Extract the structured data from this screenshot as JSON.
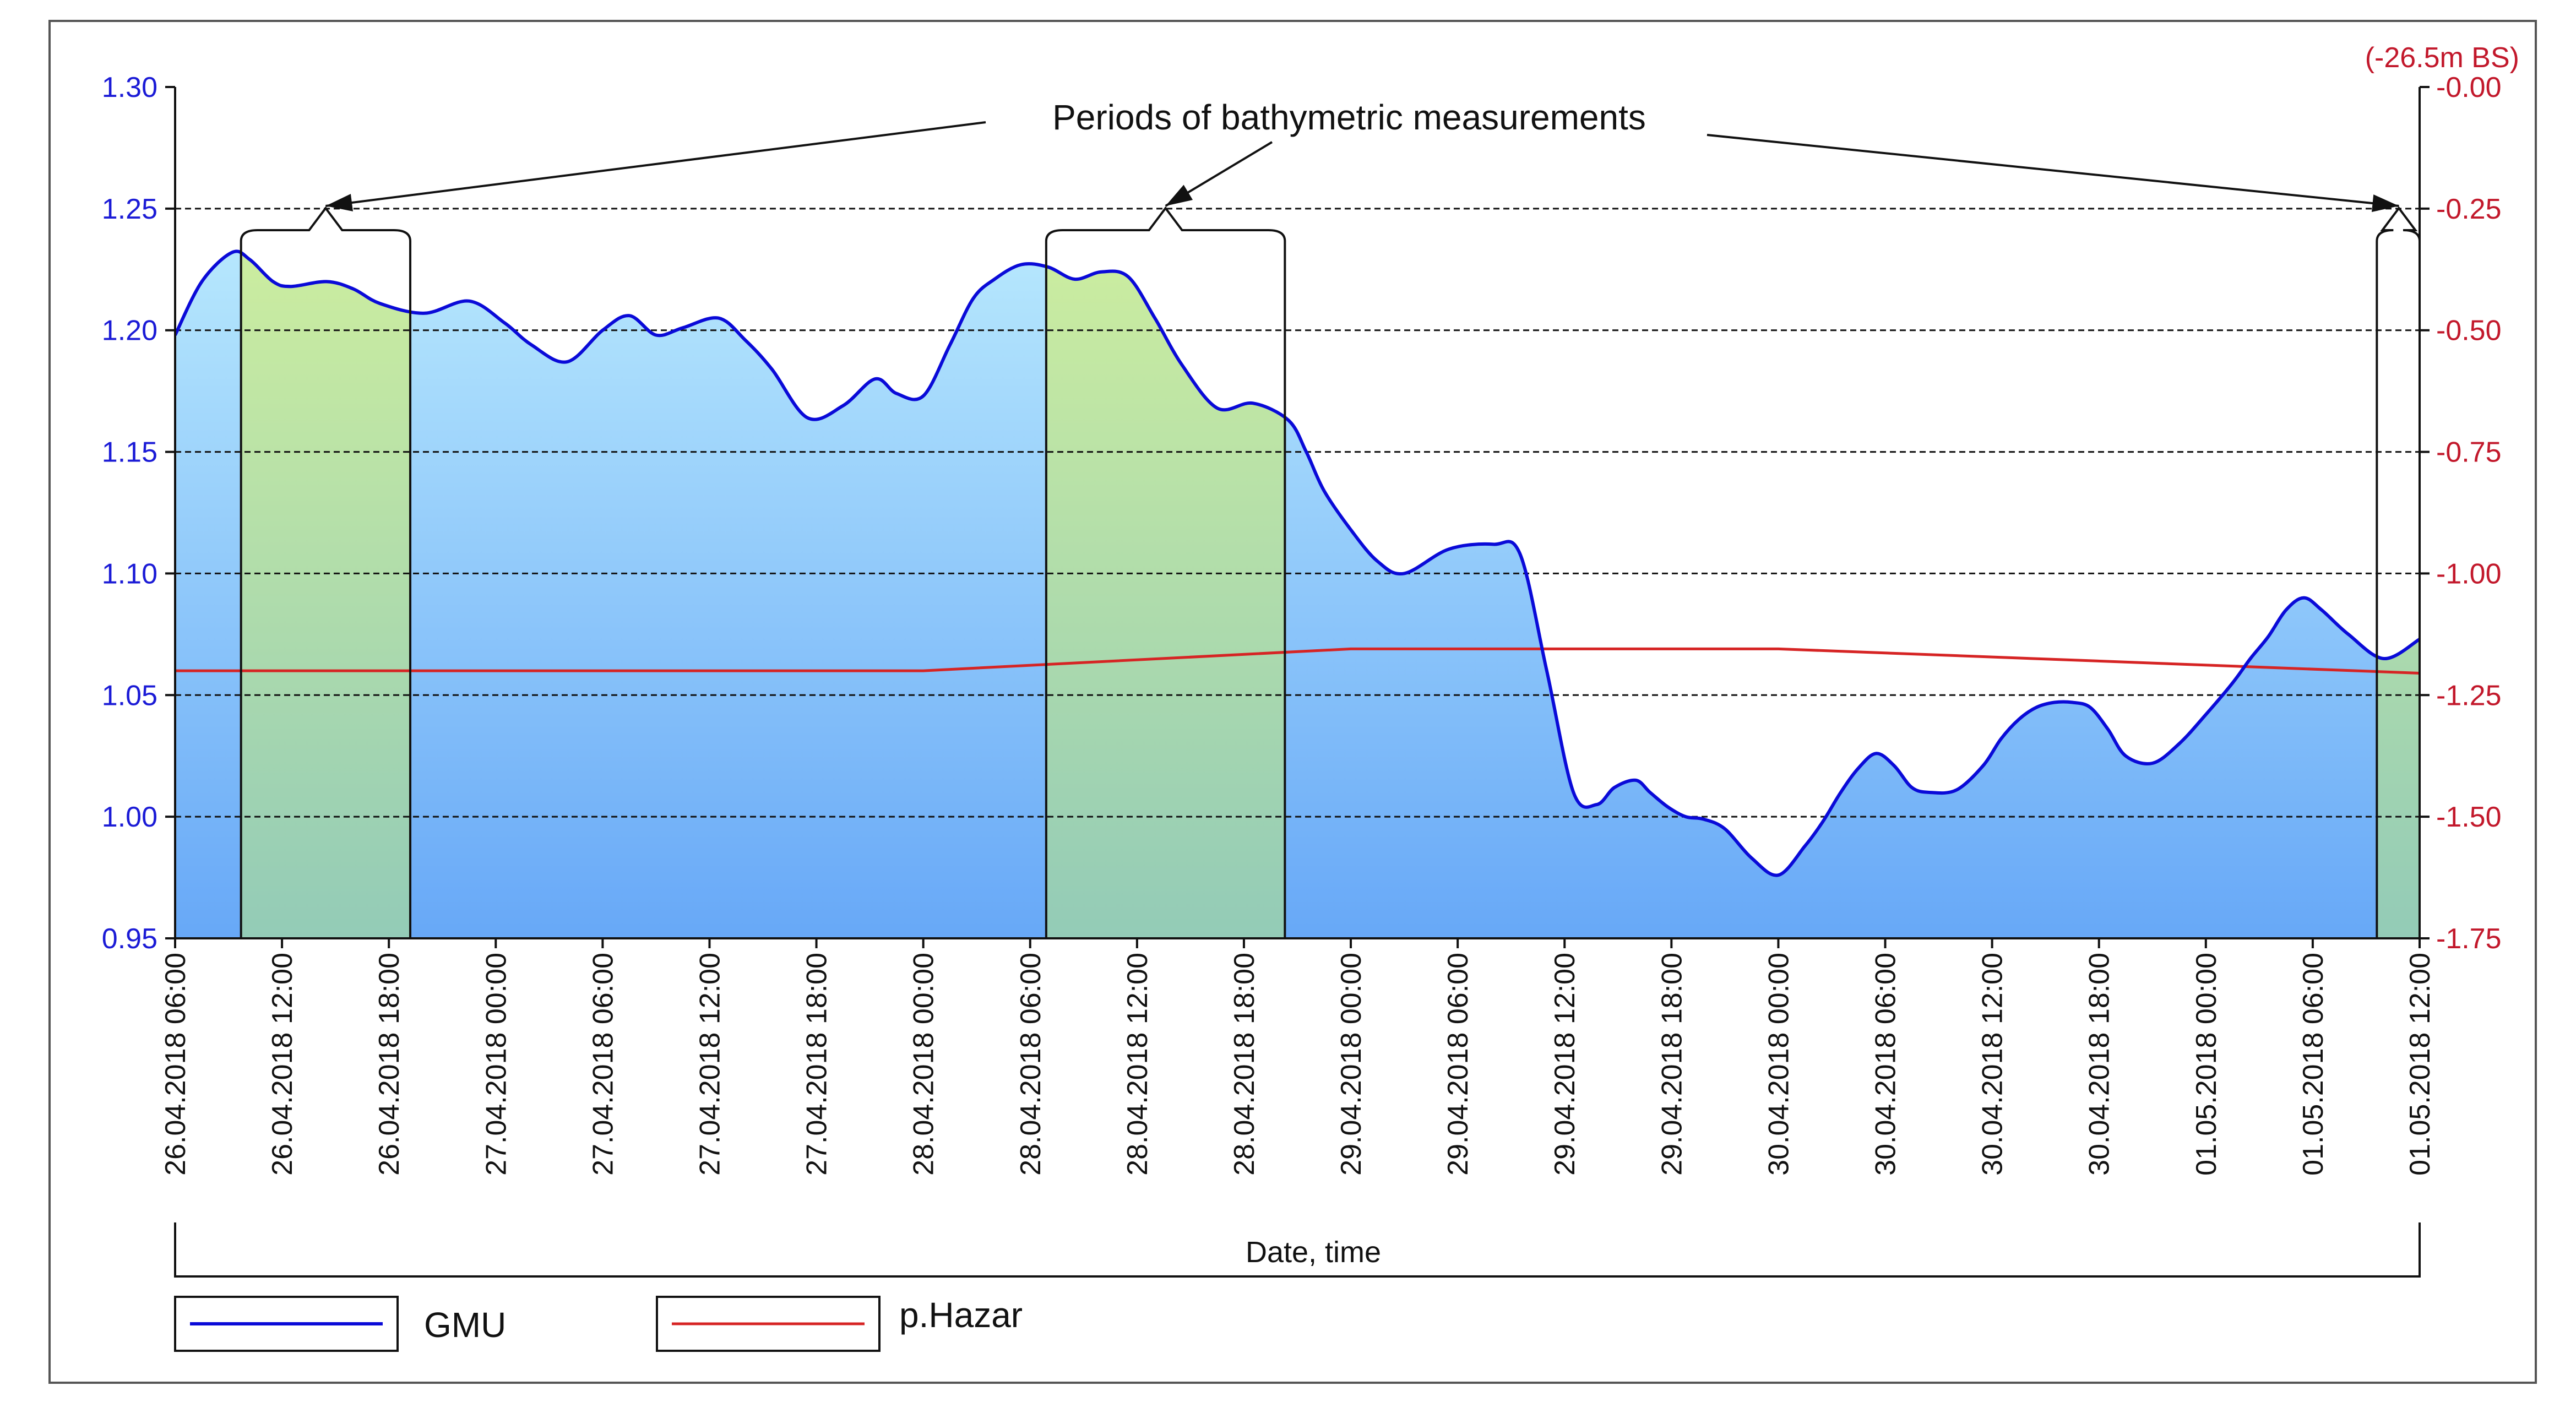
{
  "chart_data": {
    "type": "area",
    "xlabel": "Date, time",
    "annotation": "Periods of bathymetric measurements",
    "left_axis": {
      "range": [
        0.95,
        1.3
      ],
      "ticks": [
        "1.30",
        "1.25",
        "1.20",
        "1.15",
        "1.10",
        "1.05",
        "1.00",
        "0.95"
      ],
      "color": "#1b1bd6"
    },
    "right_axis": {
      "unit_label": "(-26.5m BS)",
      "range": [
        -1.75,
        0.0
      ],
      "ticks": [
        "-0.00",
        "-0.25",
        "-0.50",
        "-0.75",
        "-1.00",
        "-1.25",
        "-1.50",
        "-1.75"
      ],
      "color": "#c2182b"
    },
    "x_axis": {
      "range_hours": [
        0,
        126
      ],
      "ticks": [
        "26.04.2018 06:00",
        "26.04.2018 12:00",
        "26.04.2018 18:00",
        "27.04.2018 00:00",
        "27.04.2018 06:00",
        "27.04.2018 12:00",
        "27.04.2018 18:00",
        "28.04.2018 00:00",
        "28.04.2018 06:00",
        "28.04.2018 12:00",
        "28.04.2018 18:00",
        "29.04.2018 00:00",
        "29.04.2018 06:00",
        "29.04.2018 12:00",
        "29.04.2018 18:00",
        "30.04.2018 00:00",
        "30.04.2018 06:00",
        "30.04.2018 12:00",
        "30.04.2018 18:00",
        "01.05.2018 00:00",
        "01.05.2018 06:00",
        "01.05.2018 12:00"
      ]
    },
    "measurement_periods_hours": [
      [
        3.7,
        13.2
      ],
      [
        48.9,
        62.3
      ],
      [
        123.6,
        126
      ]
    ],
    "series": [
      {
        "name": "GMU",
        "axis": "left",
        "color": "#0a0ad8",
        "x_hours": [
          0,
          1.5,
          3.2,
          4.2,
          5.5,
          6.5,
          8.5,
          10,
          11.5,
          14,
          16.5,
          18.5,
          20,
          22,
          24,
          25.5,
          27,
          28.5,
          30.5,
          32,
          33.5,
          35.5,
          37.5,
          39.3,
          40.5,
          42,
          43.5,
          44.8,
          46,
          47.5,
          49,
          50.5,
          52,
          53.5,
          55,
          56.5,
          58.5,
          60.5,
          62.5,
          63.5,
          64.5,
          66,
          67.5,
          69,
          71.5,
          74,
          75.5,
          77,
          78.5,
          79.8,
          80.8,
          82,
          82.8,
          83.8,
          84.8,
          85.8,
          87,
          88.5,
          90,
          91.5,
          92.5,
          93.5,
          94.5,
          95.5,
          96.5,
          97.5,
          98.5,
          100,
          101.5,
          102.5,
          103.5,
          104.5,
          105.5,
          106.5,
          107.5,
          108.5,
          109.5,
          111,
          112.5,
          114,
          115.5,
          116.5,
          117.5,
          118.5,
          119.5,
          120.5,
          122,
          124,
          126
        ],
        "values": [
          1.198,
          1.22,
          1.232,
          1.229,
          1.22,
          1.218,
          1.22,
          1.217,
          1.211,
          1.207,
          1.212,
          1.203,
          1.194,
          1.187,
          1.2,
          1.206,
          1.198,
          1.201,
          1.205,
          1.196,
          1.184,
          1.164,
          1.169,
          1.18,
          1.174,
          1.173,
          1.194,
          1.213,
          1.221,
          1.227,
          1.226,
          1.221,
          1.224,
          1.222,
          1.205,
          1.186,
          1.168,
          1.17,
          1.163,
          1.15,
          1.134,
          1.118,
          1.105,
          1.1,
          1.11,
          1.112,
          1.108,
          1.06,
          1.01,
          1.005,
          1.012,
          1.015,
          1.01,
          1.004,
          1.0,
          0.999,
          0.995,
          0.983,
          0.976,
          0.988,
          0.998,
          1.01,
          1.02,
          1.026,
          1.021,
          1.012,
          1.01,
          1.011,
          1.021,
          1.032,
          1.04,
          1.045,
          1.047,
          1.047,
          1.045,
          1.036,
          1.025,
          1.022,
          1.03,
          1.042,
          1.055,
          1.065,
          1.074,
          1.085,
          1.09,
          1.085,
          1.075,
          1.065,
          1.073
        ]
      },
      {
        "name": "p.Hazar",
        "axis": "left",
        "color": "#d62424",
        "x_hours": [
          0,
          42,
          66,
          90,
          126
        ],
        "values": [
          1.06,
          1.06,
          1.069,
          1.069,
          1.059
        ]
      }
    ],
    "grid": "horizontal dashed",
    "legend": "bottom-left"
  }
}
